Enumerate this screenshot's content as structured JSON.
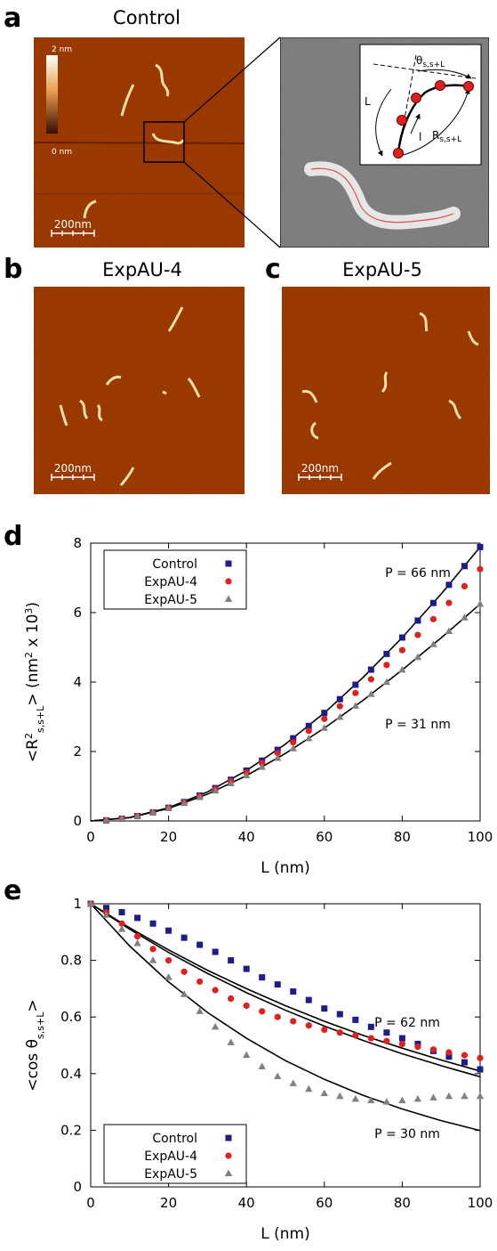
{
  "panels": [
    {
      "letter": "a",
      "title": "Control"
    },
    {
      "letter": "b",
      "title": "ExpAU-4"
    },
    {
      "letter": "c",
      "title": "ExpAU-5"
    },
    {
      "letter": "d"
    },
    {
      "letter": "e"
    }
  ],
  "colorbar": {
    "max": "2 nm",
    "min": "0 nm"
  },
  "scale_bar": "200nm",
  "inset": {
    "theta": {
      "symbol": "θ",
      "subscript": "s,s+L"
    },
    "contour": "L",
    "segment": "l",
    "distance": {
      "symbol": "R",
      "subscript": "s,s+L"
    }
  },
  "chart_data": [
    {
      "type": "scatter",
      "x_label": "L (nm)",
      "y_label_parts": [
        {
          "text": "<R",
          "style": "normal"
        },
        {
          "text": "2",
          "style": "sup"
        },
        {
          "text": "s,s+L",
          "style": "sub"
        },
        {
          "text": "> (nm",
          "style": "normal"
        },
        {
          "text": "2",
          "style": "sup"
        },
        {
          "text": " x 10",
          "style": "normal"
        },
        {
          "text": "3",
          "style": "sup"
        },
        {
          "text": ")",
          "style": "normal"
        }
      ],
      "xlim": [
        0,
        100
      ],
      "xticks": [
        0,
        20,
        40,
        60,
        80,
        100
      ],
      "ylim": [
        0,
        8
      ],
      "yticks": [
        0,
        2,
        4,
        6,
        8
      ],
      "legend": "upper left",
      "x": [
        4,
        8,
        12,
        16,
        20,
        24,
        28,
        32,
        36,
        40,
        44,
        48,
        52,
        56,
        60,
        64,
        68,
        72,
        76,
        80,
        84,
        88,
        92,
        96,
        100
      ],
      "series": [
        {
          "name": "Control",
          "color": "#1c1c8c",
          "marker": "square",
          "values": [
            0.016,
            0.063,
            0.14,
            0.246,
            0.381,
            0.543,
            0.731,
            0.946,
            1.186,
            1.45,
            1.738,
            2.049,
            2.381,
            2.736,
            3.111,
            3.507,
            3.923,
            4.357,
            4.81,
            5.282,
            5.77,
            6.276,
            6.799,
            7.339,
            7.888
          ]
        },
        {
          "name": "ExpAU-4",
          "color": "#e0201c",
          "marker": "circle",
          "values": [
            0.016,
            0.062,
            0.138,
            0.242,
            0.373,
            0.529,
            0.709,
            0.916,
            1.144,
            1.394,
            1.664,
            1.955,
            2.265,
            2.594,
            2.94,
            3.304,
            3.684,
            4.08,
            4.491,
            4.918,
            5.357,
            5.811,
            6.278,
            6.759,
            7.25
          ]
        },
        {
          "name": "ExpAU-5",
          "color": "#808080",
          "marker": "triangle",
          "values": [
            0.016,
            0.061,
            0.135,
            0.235,
            0.36,
            0.508,
            0.678,
            0.868,
            1.078,
            1.305,
            1.549,
            1.809,
            2.083,
            2.372,
            2.673,
            2.986,
            3.311,
            3.647,
            3.992,
            4.348,
            4.711,
            5.084,
            5.463,
            5.851,
            6.245
          ]
        }
      ],
      "fit_x": [
        0,
        10,
        20,
        30,
        40,
        50,
        60,
        70,
        80,
        90,
        100
      ],
      "fit_lines": [
        {
          "color": "#000000",
          "values": [
            0,
            0.098,
            0.381,
            0.835,
            1.45,
            2.212,
            3.111,
            4.138,
            5.282,
            6.535,
            7.888
          ]
        },
        {
          "color": "#000000",
          "values": [
            0,
            0.095,
            0.36,
            0.771,
            1.305,
            1.944,
            2.673,
            3.478,
            4.348,
            5.272,
            6.245
          ]
        }
      ],
      "annotations": [
        "P = 66 nm",
        "P = 31 nm"
      ]
    },
    {
      "type": "scatter",
      "x_label": "L (nm)",
      "y_label_parts": [
        {
          "text": "<cos θ",
          "style": "normal"
        },
        {
          "text": "s,s+L",
          "style": "sub"
        },
        {
          "text": ">",
          "style": "normal"
        }
      ],
      "xlim": [
        0,
        100
      ],
      "xticks": [
        0,
        20,
        40,
        60,
        80,
        100
      ],
      "ylim": [
        0,
        1
      ],
      "yticks": [
        0,
        0.2,
        0.4,
        0.6,
        0.8,
        1
      ],
      "legend": "lower left",
      "x": [
        0,
        4,
        8,
        12,
        16,
        20,
        24,
        28,
        32,
        36,
        40,
        44,
        48,
        52,
        56,
        60,
        64,
        68,
        72,
        76,
        80,
        84,
        88,
        92,
        96,
        100
      ],
      "series": [
        {
          "name": "Control",
          "color": "#1c1c8c",
          "marker": "square",
          "values": [
            1,
            0.985,
            0.97,
            0.95,
            0.93,
            0.905,
            0.88,
            0.855,
            0.83,
            0.8,
            0.77,
            0.74,
            0.715,
            0.69,
            0.66,
            0.63,
            0.61,
            0.59,
            0.565,
            0.545,
            0.525,
            0.505,
            0.48,
            0.46,
            0.44,
            0.415
          ]
        },
        {
          "name": "ExpAU-4",
          "color": "#e0201c",
          "marker": "circle",
          "values": [
            1,
            0.97,
            0.93,
            0.885,
            0.84,
            0.8,
            0.76,
            0.725,
            0.695,
            0.665,
            0.64,
            0.62,
            0.6,
            0.585,
            0.57,
            0.555,
            0.545,
            0.535,
            0.525,
            0.515,
            0.505,
            0.495,
            0.485,
            0.475,
            0.465,
            0.455
          ]
        },
        {
          "name": "ExpAU-5",
          "color": "#808080",
          "marker": "triangle",
          "values": [
            1,
            0.96,
            0.91,
            0.86,
            0.8,
            0.74,
            0.68,
            0.62,
            0.565,
            0.51,
            0.465,
            0.425,
            0.39,
            0.365,
            0.345,
            0.33,
            0.32,
            0.31,
            0.305,
            0.3,
            0.305,
            0.31,
            0.315,
            0.32,
            0.32,
            0.32
          ]
        }
      ],
      "fit_x": [
        0,
        10,
        20,
        30,
        40,
        50,
        60,
        70,
        80,
        90,
        100
      ],
      "fit_lines": [
        {
          "color": "#000000",
          "values": [
            1,
            0.915,
            0.837,
            0.765,
            0.7,
            0.64,
            0.585,
            0.535,
            0.49,
            0.448,
            0.409
          ]
        },
        {
          "color": "#000000",
          "values": [
            1,
            0.91,
            0.828,
            0.754,
            0.686,
            0.624,
            0.568,
            0.517,
            0.47,
            0.428,
            0.389
          ]
        },
        {
          "color": "#000000",
          "values": [
            1,
            0.851,
            0.724,
            0.616,
            0.525,
            0.446,
            0.38,
            0.323,
            0.275,
            0.234,
            0.199
          ]
        }
      ],
      "annotations": [
        "P = 62 nm",
        "P = 30 nm"
      ]
    }
  ]
}
